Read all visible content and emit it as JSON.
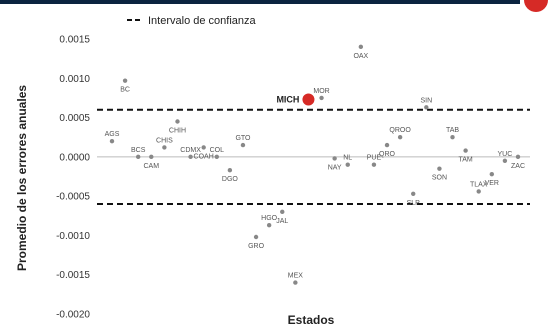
{
  "chart_data": {
    "type": "scatter",
    "xlabel": "Estados",
    "ylabel": "Promedio de los errores anuales",
    "ylim": [
      -0.002,
      0.0015
    ],
    "yticks": [
      "0.0015",
      "0.0010",
      "0.0005",
      "0.0000",
      "-0.0005",
      "-0.0010",
      "-0.0015",
      "-0.0020"
    ],
    "confidence_band": [
      0.0006,
      -0.0006
    ],
    "zero_line": 0,
    "legend": {
      "label": "Intervalo de confianza",
      "placement": "top-left"
    },
    "highlight_color": "#d62a26",
    "point_color": "#888888",
    "points": [
      {
        "label": "AGS",
        "x": 1,
        "y": 0.0002
      },
      {
        "label": "BC",
        "x": 2,
        "y": 0.00097
      },
      {
        "label": "BCS",
        "x": 3,
        "y": 0.0
      },
      {
        "label": "CAM",
        "x": 4,
        "y": 0.0
      },
      {
        "label": "CHIS",
        "x": 5,
        "y": 0.00012
      },
      {
        "label": "CHIH",
        "x": 6,
        "y": 0.00045
      },
      {
        "label": "CDMX",
        "x": 7,
        "y": 0.0
      },
      {
        "label": "COAH",
        "x": 8,
        "y": 0.00012
      },
      {
        "label": "COL",
        "x": 9,
        "y": 0.0
      },
      {
        "label": "DGO",
        "x": 10,
        "y": -0.00017
      },
      {
        "label": "GTO",
        "x": 11,
        "y": 0.00015
      },
      {
        "label": "GRO",
        "x": 12,
        "y": -0.00102
      },
      {
        "label": "HGO",
        "x": 13,
        "y": -0.00087
      },
      {
        "label": "JAL",
        "x": 14,
        "y": -0.0007
      },
      {
        "label": "MEX",
        "x": 15,
        "y": -0.0016
      },
      {
        "label": "MICH",
        "x": 16,
        "y": 0.00073,
        "highlight": true
      },
      {
        "label": "MOR",
        "x": 17,
        "y": 0.00075
      },
      {
        "label": "NAY",
        "x": 18,
        "y": -2e-05
      },
      {
        "label": "NL",
        "x": 19,
        "y": -0.0001
      },
      {
        "label": "OAX",
        "x": 20,
        "y": 0.0014
      },
      {
        "label": "PUE",
        "x": 21,
        "y": -0.0001
      },
      {
        "label": "QRO",
        "x": 22,
        "y": 0.00015
      },
      {
        "label": "QROO",
        "x": 23,
        "y": 0.00025
      },
      {
        "label": "SLP",
        "x": 24,
        "y": -0.00047
      },
      {
        "label": "SIN",
        "x": 25,
        "y": 0.00063
      },
      {
        "label": "SON",
        "x": 26,
        "y": -0.00015
      },
      {
        "label": "TAB",
        "x": 27,
        "y": 0.00025
      },
      {
        "label": "TAM",
        "x": 28,
        "y": 8e-05
      },
      {
        "label": "TLAX",
        "x": 29,
        "y": -0.00044
      },
      {
        "label": "VER",
        "x": 30,
        "y": -0.00022
      },
      {
        "label": "YUC",
        "x": 31,
        "y": -5e-05
      },
      {
        "label": "ZAC",
        "x": 32,
        "y": 0.0
      }
    ]
  }
}
